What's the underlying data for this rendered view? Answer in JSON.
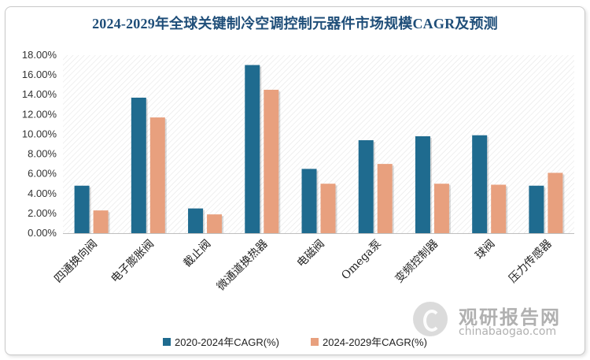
{
  "chart_data": {
    "type": "bar",
    "title": "2024-2029年全球关键制冷空调控制元器件市场规模CAGR及预测",
    "categories": [
      "四通换向阀",
      "电子膨胀阀",
      "截止阀",
      "微通道换热器",
      "电磁阀",
      "Omega泵",
      "变频控制器",
      "球阀",
      "压力传感器"
    ],
    "series": [
      {
        "name": "2020-2024年CAGR(%)",
        "color": "#1f6b8f",
        "values": [
          4.8,
          13.7,
          2.5,
          17.0,
          6.5,
          9.4,
          9.8,
          9.9,
          4.8
        ]
      },
      {
        "name": "2024-2029年CAGR(%)",
        "color": "#e8a07e",
        "values": [
          2.3,
          11.7,
          1.9,
          14.5,
          5.0,
          7.0,
          5.0,
          4.9,
          6.1
        ]
      }
    ],
    "yticks": [
      "0.00%",
      "2.00%",
      "4.00%",
      "6.00%",
      "8.00%",
      "10.00%",
      "12.00%",
      "14.00%",
      "16.00%",
      "18.00%"
    ],
    "ylim": [
      0,
      18
    ],
    "xlabel": "",
    "ylabel": "",
    "legend_position": "bottom"
  },
  "watermark": {
    "name_cn": "观研报告网",
    "site": "chinabaogao.com"
  }
}
